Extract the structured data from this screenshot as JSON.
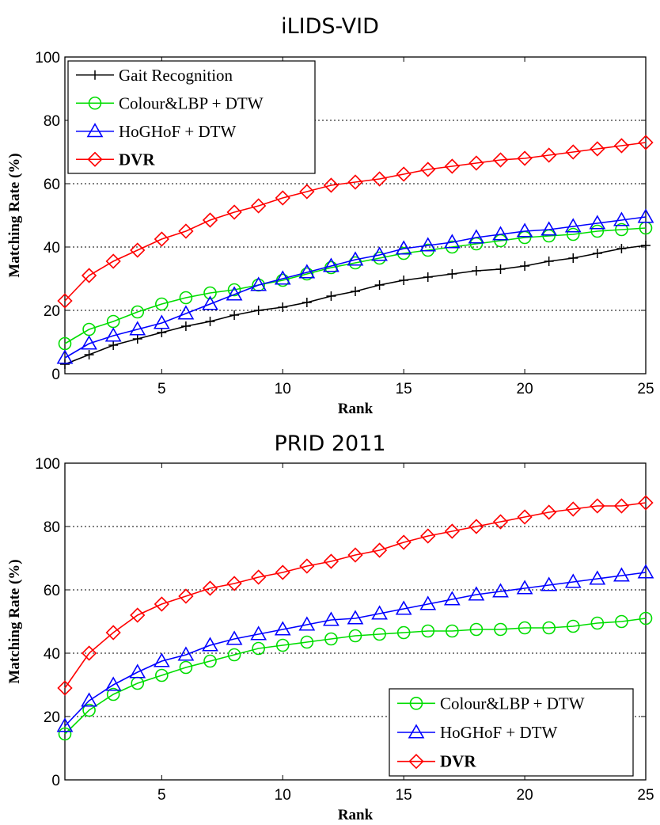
{
  "chart_data": [
    {
      "type": "line",
      "title": "iLIDS-VID",
      "xlabel": "Rank",
      "ylabel": "Matching Rate (%)",
      "xlim": [
        1,
        25
      ],
      "ylim": [
        0,
        100
      ],
      "xticks": [
        5,
        10,
        15,
        20,
        25
      ],
      "yticks": [
        0,
        20,
        40,
        60,
        80,
        100
      ],
      "grid": "horizontal dotted",
      "legend_position": "top-left",
      "x": [
        1,
        2,
        3,
        4,
        5,
        6,
        7,
        8,
        9,
        10,
        11,
        12,
        13,
        14,
        15,
        16,
        17,
        18,
        19,
        20,
        21,
        22,
        23,
        24,
        25
      ],
      "series": [
        {
          "name": "Gait Recognition",
          "color": "#000000",
          "marker": "plus",
          "values": [
            3,
            6,
            9,
            11,
            13,
            15,
            16.5,
            18.5,
            20,
            21,
            22.5,
            24.5,
            26,
            28,
            29.5,
            30.5,
            31.5,
            32.5,
            33,
            34,
            35.5,
            36.5,
            38,
            39.5,
            40.5
          ]
        },
        {
          "name": "Colour&LBP + DTW",
          "color": "#00dd00",
          "marker": "circle",
          "values": [
            9.5,
            14,
            16.5,
            19.5,
            22,
            24,
            25.5,
            26.5,
            28,
            29.5,
            31.5,
            33.5,
            35,
            36.5,
            38,
            39,
            40,
            41,
            42,
            43,
            43.5,
            44,
            45,
            45.5,
            46
          ]
        },
        {
          "name": "HoGHoF + DTW",
          "color": "#0000ff",
          "marker": "triangle",
          "values": [
            5,
            9.5,
            12,
            14,
            16,
            19,
            22,
            25,
            28,
            30,
            32,
            34,
            36,
            37.5,
            39.5,
            40.5,
            41.5,
            43,
            44,
            45,
            45.5,
            46.5,
            47.5,
            48.5,
            49.5
          ]
        },
        {
          "name": "DVR",
          "color": "#ff0000",
          "marker": "diamond",
          "values": [
            23,
            31,
            35.5,
            39,
            42.5,
            45,
            48.5,
            51,
            53,
            55.5,
            57.5,
            59.5,
            60.5,
            61.5,
            63,
            64.5,
            65.5,
            66.5,
            67.5,
            68,
            69,
            70,
            71,
            72,
            73
          ]
        }
      ]
    },
    {
      "type": "line",
      "title": "PRID 2011",
      "xlabel": "Rank",
      "ylabel": "Matching Rate (%)",
      "xlim": [
        1,
        25
      ],
      "ylim": [
        0,
        100
      ],
      "xticks": [
        5,
        10,
        15,
        20,
        25
      ],
      "yticks": [
        0,
        20,
        40,
        60,
        80,
        100
      ],
      "grid": "horizontal dotted",
      "legend_position": "bottom-right",
      "x": [
        1,
        2,
        3,
        4,
        5,
        6,
        7,
        8,
        9,
        10,
        11,
        12,
        13,
        14,
        15,
        16,
        17,
        18,
        19,
        20,
        21,
        22,
        23,
        24,
        25
      ],
      "series": [
        {
          "name": "Colour&LBP + DTW",
          "color": "#00dd00",
          "marker": "circle",
          "values": [
            14.5,
            22,
            27,
            30.5,
            33,
            35.5,
            37.5,
            39.5,
            41.5,
            42.5,
            43.5,
            44.5,
            45.5,
            46,
            46.5,
            47,
            47,
            47.5,
            47.5,
            48,
            48,
            48.5,
            49.5,
            50,
            51
          ]
        },
        {
          "name": "HoGHoF + DTW",
          "color": "#0000ff",
          "marker": "triangle",
          "values": [
            17,
            25,
            30,
            34,
            37.5,
            39.5,
            42.5,
            44.5,
            46,
            47.5,
            49,
            50.5,
            51,
            52.5,
            54,
            55.5,
            57,
            58.5,
            59.5,
            60.5,
            61.5,
            62.5,
            63.5,
            64.5,
            65.5
          ]
        },
        {
          "name": "DVR",
          "color": "#ff0000",
          "marker": "diamond",
          "values": [
            29,
            40,
            46.5,
            52,
            55.5,
            58,
            60.5,
            62,
            64,
            65.5,
            67.5,
            69,
            71,
            72.5,
            75,
            77,
            78.5,
            80,
            81.5,
            83,
            84.5,
            85.5,
            86.5,
            86.5,
            87.5
          ]
        }
      ]
    }
  ]
}
